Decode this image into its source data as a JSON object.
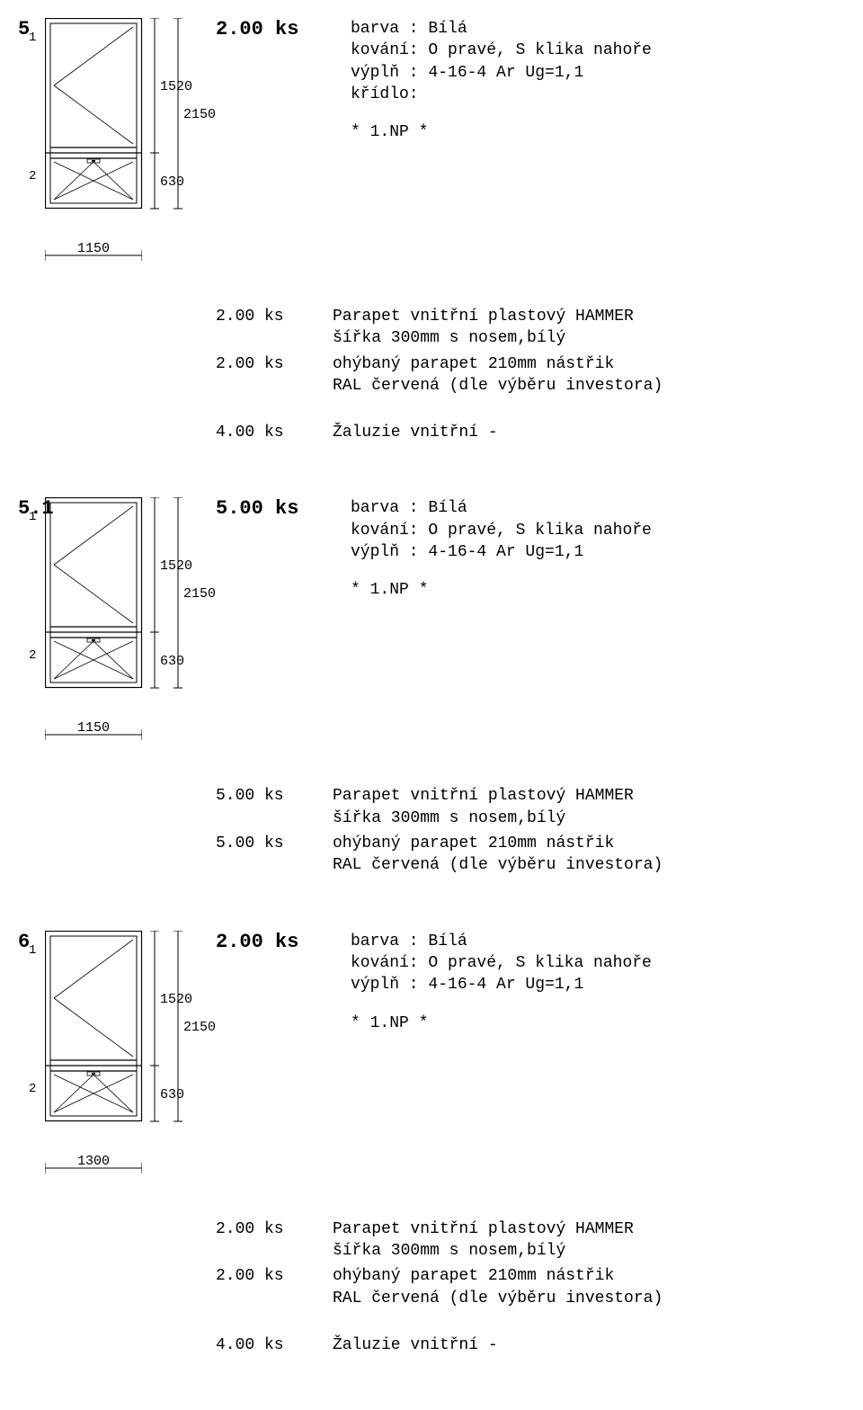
{
  "items": [
    {
      "number": "5",
      "qty": "2.00 ks",
      "desc": {
        "barva": "barva : Bílá",
        "kovani": "kování: O pravé, S klika nahoře",
        "vypln": "výplň : 4-16-4 Ar Ug=1,1",
        "kridlo": "křídlo:",
        "np": "* 1.NP *"
      },
      "dims": {
        "width": "1150",
        "upper": "1520",
        "total": "2150",
        "lower": "630",
        "sash1": "1",
        "sash2": "2"
      },
      "acc": [
        {
          "qty": "2.00 ks",
          "desc": "Parapet vnitřní plastový HAMMER\nšířka 300mm s nosem,bílý"
        },
        {
          "qty": "2.00 ks",
          "desc": "ohýbaný parapet 210mm nástřik\nRAL červená (dle výběru investora)"
        },
        {
          "gap": true
        },
        {
          "qty": "4.00 ks",
          "desc": "Žaluzie vnitřní -"
        }
      ]
    },
    {
      "number": "5.1",
      "qty": "5.00 ks",
      "desc": {
        "barva": "barva : Bílá",
        "kovani": "kování: O pravé, S klika nahoře",
        "vypln": "výplň : 4-16-4 Ar Ug=1,1",
        "kridlo": "",
        "np": "* 1.NP *"
      },
      "dims": {
        "width": "1150",
        "upper": "1520",
        "total": "2150",
        "lower": "630",
        "sash1": "1",
        "sash2": "2"
      },
      "acc": [
        {
          "qty": "5.00 ks",
          "desc": "Parapet vnitřní plastový HAMMER\nšířka 300mm s nosem,bílý"
        },
        {
          "qty": "5.00 ks",
          "desc": "ohýbaný parapet 210mm nástřik\nRAL červená (dle výběru investora)"
        }
      ]
    },
    {
      "number": "6",
      "qty": "2.00 ks",
      "desc": {
        "barva": "barva : Bílá",
        "kovani": "kování: O pravé, S klika nahoře",
        "vypln": "výplň : 4-16-4 Ar Ug=1,1",
        "kridlo": "",
        "np": "* 1.NP *"
      },
      "dims": {
        "width": "1300",
        "upper": "1520",
        "total": "2150",
        "lower": "630",
        "sash1": "1",
        "sash2": "2"
      },
      "acc": [
        {
          "qty": "2.00 ks",
          "desc": "Parapet vnitřní plastový HAMMER\nšířka 300mm s nosem,bílý"
        },
        {
          "qty": "2.00 ks",
          "desc": "ohýbaný parapet 210mm nástřik\nRAL červená (dle výběru investora)"
        },
        {
          "gap": true
        },
        {
          "qty": "4.00 ks",
          "desc": "Žaluzie vnitřní -"
        }
      ]
    }
  ]
}
